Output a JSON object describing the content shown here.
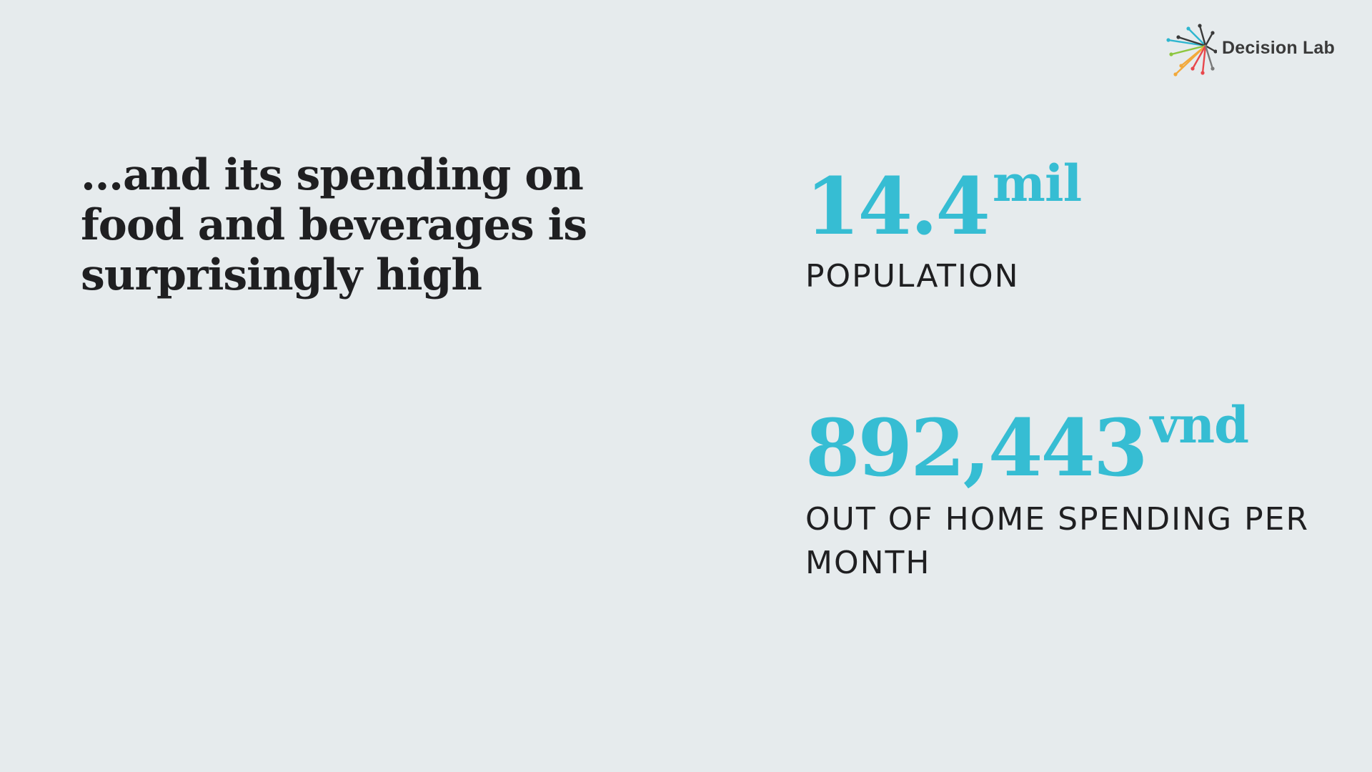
{
  "logo": {
    "name": "Decision Lab"
  },
  "headline": "…and its spending on food and beverages is surprisingly high",
  "stats": [
    {
      "value": "14.4",
      "unit": "mil",
      "label": "POPULATION"
    },
    {
      "value": "892,443",
      "unit": "vnd",
      "label": "OUT OF HOME SPENDING PER MONTH"
    }
  ],
  "colors": {
    "background": "#e6ebed",
    "accent": "#36bdd3",
    "text": "#1f1f21"
  }
}
